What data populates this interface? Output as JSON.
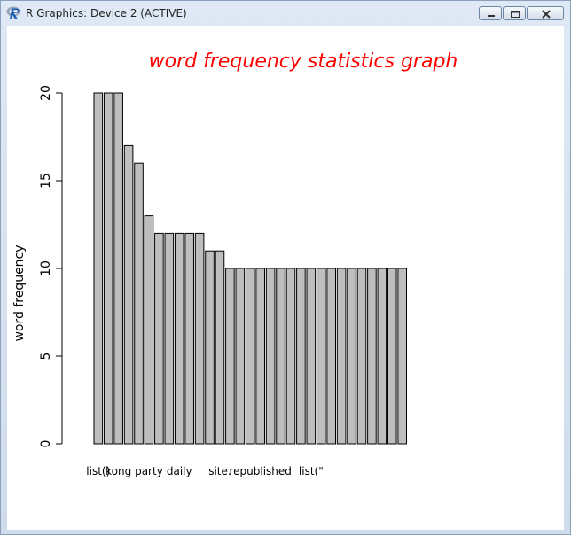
{
  "window": {
    "title": "R Graphics: Device 2 (ACTIVE)",
    "icon": "r-logo-icon",
    "controls": [
      "minimize-icon",
      "maximize-icon",
      "close-icon"
    ]
  },
  "colors": {
    "title": "#ff0000",
    "bar_fill": "#bebebe",
    "bar_stroke": "#000000"
  },
  "chart_data": {
    "type": "bar",
    "title": "word frequency statistics graph",
    "xlabel": "",
    "ylabel": "word frequency",
    "ylim": [
      0,
      20
    ],
    "yticks": [
      0,
      5,
      10,
      15,
      20
    ],
    "categories": [
      "list()",
      "",
      "kong",
      "",
      "",
      "party",
      "",
      "",
      "daily",
      "",
      "",
      "",
      "site.",
      "",
      "",
      "",
      "republished",
      "",
      "",
      "",
      "",
      "list(\"",
      "",
      "",
      "",
      "",
      "",
      "",
      "",
      "",
      ""
    ],
    "values": [
      20,
      20,
      20,
      17,
      16,
      13,
      12,
      12,
      12,
      12,
      12,
      11,
      11,
      10,
      10,
      10,
      10,
      10,
      10,
      10,
      10,
      10,
      10,
      10,
      10,
      10,
      10,
      10,
      10,
      10,
      10
    ],
    "grid": false,
    "legend": "none"
  }
}
